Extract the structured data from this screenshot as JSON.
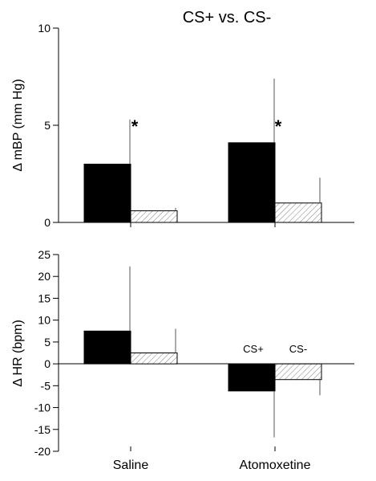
{
  "chart_data": [
    {
      "type": "bar",
      "title": "CS+ vs. CS-",
      "ylabel": "Δ  mBP (mm Hg)",
      "xlabel": "",
      "categories": [
        "Saline",
        "Atomoxetine"
      ],
      "ylim": [
        0,
        10
      ],
      "yticks": [
        0,
        5,
        10
      ],
      "grid": false,
      "series": [
        {
          "name": "CS+",
          "values": [
            3.0,
            4.1
          ],
          "errors": [
            2.3,
            3.3
          ],
          "color": "#000000",
          "pattern": "solid"
        },
        {
          "name": "CS-",
          "values": [
            0.6,
            1.0
          ],
          "errors": [
            0.15,
            1.3
          ],
          "color": "#ffffff",
          "pattern": "hatch"
        }
      ],
      "significance": [
        "*",
        "*"
      ]
    },
    {
      "type": "bar",
      "title": "",
      "ylabel": "Δ HR (bpm)",
      "xlabel": "",
      "categories": [
        "Saline",
        "Atomoxetine"
      ],
      "ylim": [
        -20,
        25
      ],
      "yticks": [
        -20,
        -15,
        -10,
        -5,
        0,
        5,
        10,
        15,
        20,
        25
      ],
      "grid": false,
      "legend_position": "inside, above Atomoxetine bars",
      "series": [
        {
          "name": "CS+",
          "values": [
            7.5,
            -6.2
          ],
          "errors": [
            14.8,
            10.6
          ],
          "color": "#000000",
          "pattern": "solid"
        },
        {
          "name": "CS-",
          "values": [
            2.5,
            -3.6
          ],
          "errors": [
            5.5,
            3.6
          ],
          "color": "#ffffff",
          "pattern": "hatch"
        }
      ]
    }
  ]
}
